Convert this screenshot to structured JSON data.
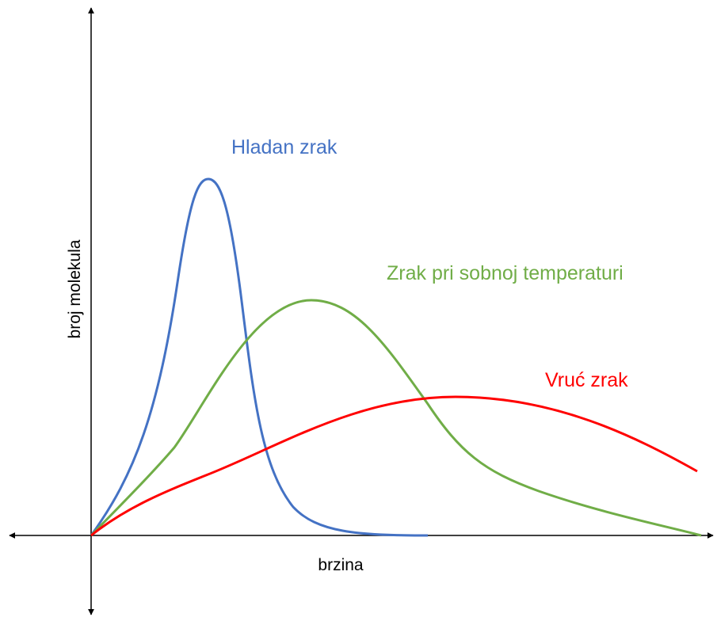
{
  "curves": [
    {
      "label": "Hladan zrak"
    },
    {
      "label": "Zrak pri sobnoj temperaturi"
    },
    {
      "label": "Vruć zrak"
    }
  ],
  "x_axis_label": "brzina",
  "y_axis_label": "broj molekula"
}
